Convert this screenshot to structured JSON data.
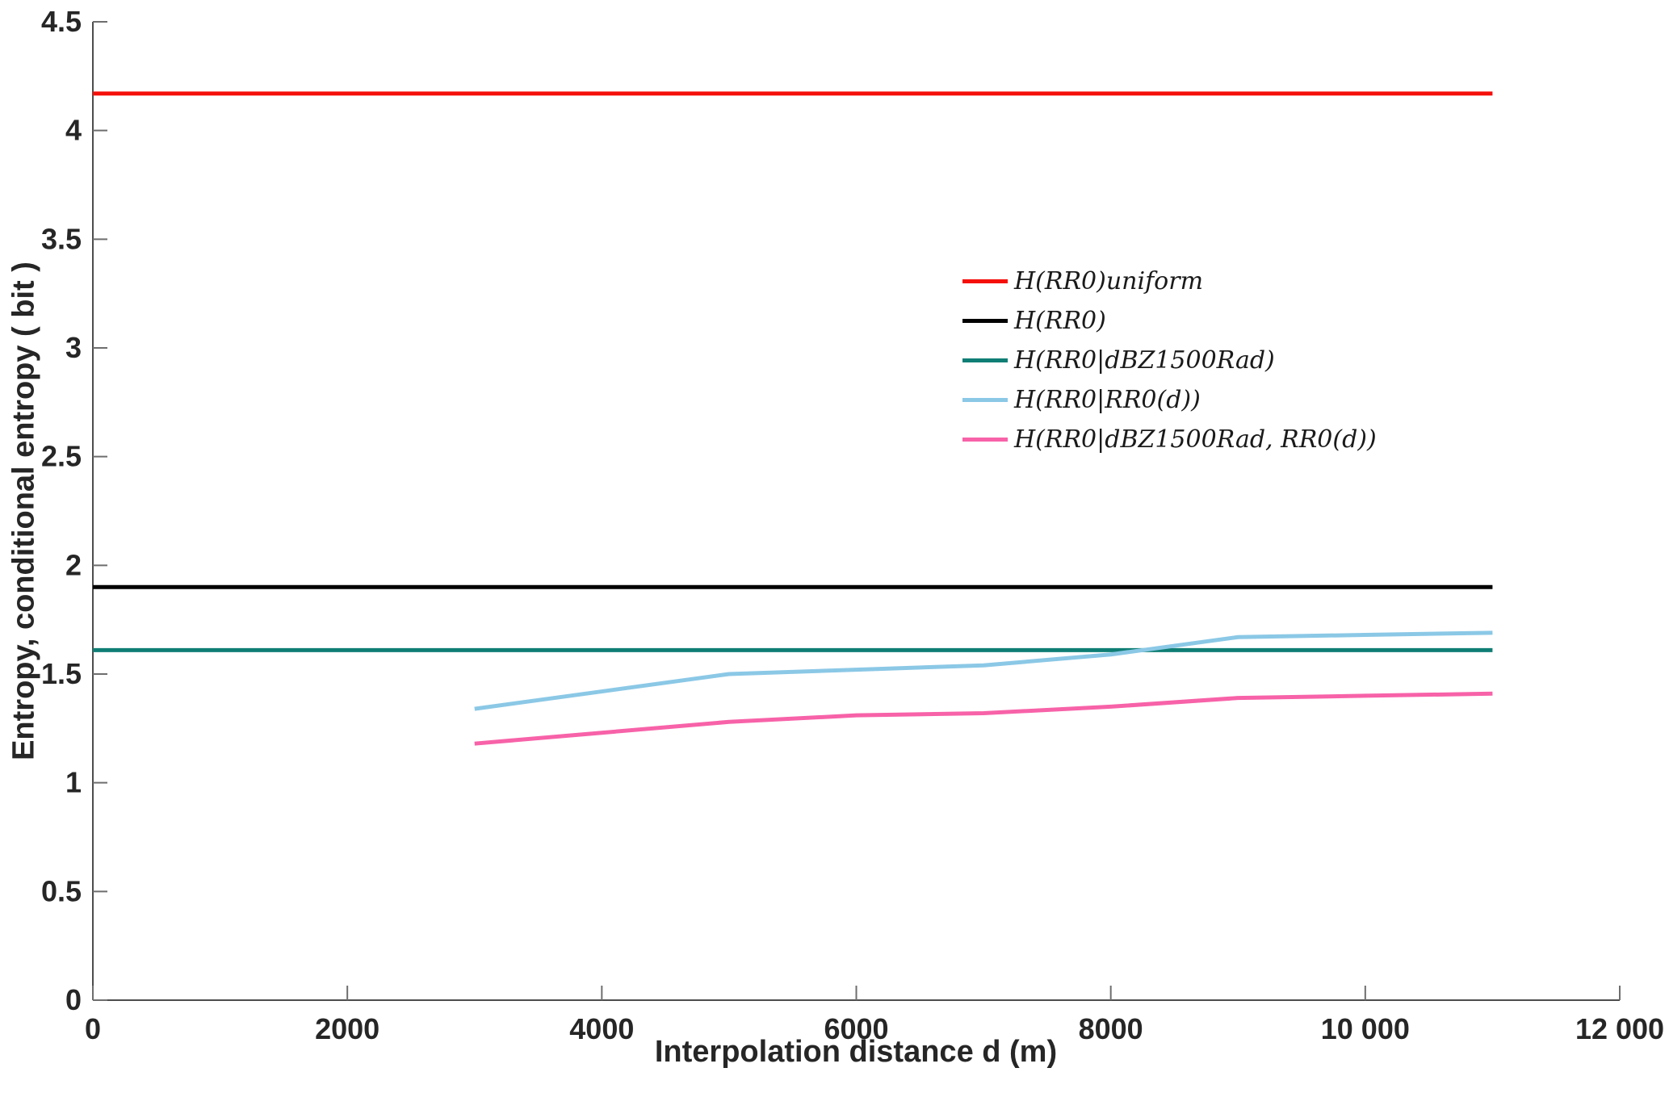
{
  "figure": {
    "background": "#ffffff",
    "axis_color": "#4d4d4d",
    "tick_color": "#6e6e6e",
    "tick_label_color": "#262626"
  },
  "chart_data": {
    "type": "line",
    "title": "",
    "xlabel": "Interpolation distance d (m)",
    "ylabel": "Entropy,  conditional entropy ( bit )",
    "xlim": [
      0,
      12000
    ],
    "ylim": [
      0,
      4.5
    ],
    "xticks": [
      0,
      2000,
      4000,
      6000,
      8000,
      10000,
      12000
    ],
    "xtick_labels": [
      "0",
      "2000",
      "4000",
      "6000",
      "8000",
      "10 000",
      "12 000"
    ],
    "yticks": [
      0,
      0.5,
      1,
      1.5,
      2,
      2.5,
      3,
      3.5,
      4,
      4.5
    ],
    "ytick_labels": [
      "0",
      "0.5",
      "1",
      "1.5",
      "2",
      "2.5",
      "3",
      "3.5",
      "4",
      "4.5"
    ],
    "grid": false,
    "legend_position": "inside-upper-right",
    "series": [
      {
        "key": "h-rr0-uniform",
        "name": "H(RR0)uniform",
        "color": "#f50f0a",
        "x": [
          0,
          11000
        ],
        "y": [
          4.17,
          4.17
        ]
      },
      {
        "key": "h-rr0",
        "name": "H(RR0)",
        "color": "#000000",
        "x": [
          0,
          11000
        ],
        "y": [
          1.9,
          1.9
        ]
      },
      {
        "key": "h-rr0-given-dbz1500rad",
        "name": "H(RR0|dBZ1500Rad)",
        "color": "#0f7e74",
        "x": [
          0,
          11000
        ],
        "y": [
          1.61,
          1.61
        ]
      },
      {
        "key": "h-rr0-given-rr0d",
        "name": "H(RR0|RR0(d))",
        "color": "#8bc8e6",
        "x": [
          3000,
          4000,
          5000,
          6000,
          7000,
          8000,
          9000,
          10000,
          11000
        ],
        "y": [
          1.34,
          1.42,
          1.5,
          1.52,
          1.54,
          1.59,
          1.67,
          1.68,
          1.69
        ]
      },
      {
        "key": "h-rr0-given-dbz1500rad-rr0d",
        "name": "H(RR0|dBZ1500Rad, RR0(d))",
        "color": "#f762a8",
        "x": [
          3000,
          4000,
          5000,
          6000,
          7000,
          8000,
          9000,
          10000,
          11000
        ],
        "y": [
          1.18,
          1.23,
          1.28,
          1.31,
          1.32,
          1.35,
          1.39,
          1.4,
          1.41
        ]
      }
    ]
  }
}
